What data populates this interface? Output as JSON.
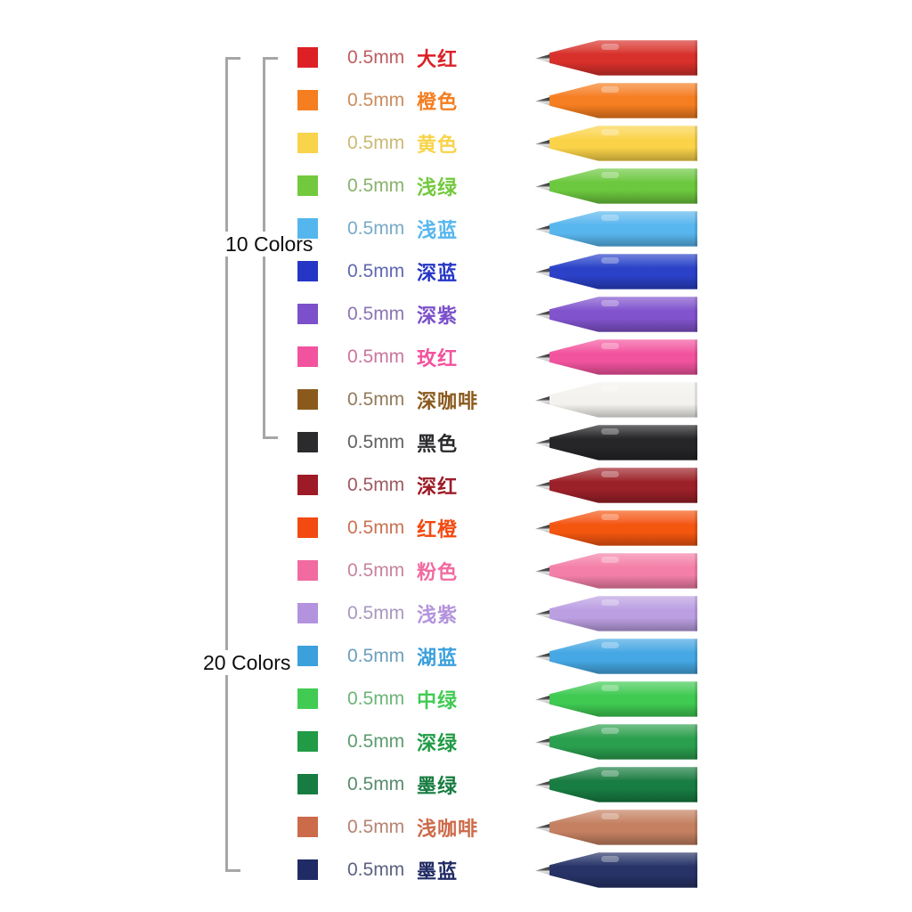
{
  "annotations": {
    "group10": {
      "label": "10 Colors"
    },
    "group20": {
      "label": "20 Colors"
    }
  },
  "ui": {
    "background": "#ffffff",
    "bracket_color": "#a6a6a6",
    "group_label_color": "#0d0d0d"
  },
  "product_rows": [
    {
      "tip_size": "0.5mm",
      "name": "大红",
      "swatch": "#dc2026",
      "pen": "#d8302b"
    },
    {
      "tip_size": "0.5mm",
      "name": "橙色",
      "swatch": "#f57e20",
      "pen": "#f57e20"
    },
    {
      "tip_size": "0.5mm",
      "name": "黄色",
      "swatch": "#f8d44b",
      "pen": "#fad348"
    },
    {
      "tip_size": "0.5mm",
      "name": "浅绿",
      "swatch": "#73c93d",
      "pen": "#6cc83e"
    },
    {
      "tip_size": "0.5mm",
      "name": "浅蓝",
      "swatch": "#55b6ee",
      "pen": "#58b6ee"
    },
    {
      "tip_size": "0.5mm",
      "name": "深蓝",
      "swatch": "#2536c6",
      "pen": "#2b41c8"
    },
    {
      "tip_size": "0.5mm",
      "name": "深紫",
      "swatch": "#7b50ca",
      "pen": "#8153cd"
    },
    {
      "tip_size": "0.5mm",
      "name": "玫红",
      "swatch": "#f2539e",
      "pen": "#f2539e"
    },
    {
      "tip_size": "0.5mm",
      "name": "深咖啡",
      "swatch": "#8a5a1d",
      "pen": "#f3f2ee"
    },
    {
      "tip_size": "0.5mm",
      "name": "黑色",
      "swatch": "#2b2b2e",
      "pen": "#262629"
    },
    {
      "tip_size": "0.5mm",
      "name": "深红",
      "swatch": "#9d1b26",
      "pen": "#9c2029"
    },
    {
      "tip_size": "0.5mm",
      "name": "红橙",
      "swatch": "#f24a10",
      "pen": "#f4560f"
    },
    {
      "tip_size": "0.5mm",
      "name": "粉色",
      "swatch": "#f16ba1",
      "pen": "#f47fa8"
    },
    {
      "tip_size": "0.5mm",
      "name": "浅紫",
      "swatch": "#b393dd",
      "pen": "#bb9fe2"
    },
    {
      "tip_size": "0.5mm",
      "name": "湖蓝",
      "swatch": "#3ba0dc",
      "pen": "#45a7e3"
    },
    {
      "tip_size": "0.5mm",
      "name": "中绿",
      "swatch": "#41cb53",
      "pen": "#3fca52"
    },
    {
      "tip_size": "0.5mm",
      "name": "深绿",
      "swatch": "#219b45",
      "pen": "#2aa04e"
    },
    {
      "tip_size": "0.5mm",
      "name": "墨绿",
      "swatch": "#177c41",
      "pen": "#187d42"
    },
    {
      "tip_size": "0.5mm",
      "name": "浅咖啡",
      "swatch": "#cc6b4a",
      "pen": "#c48061"
    },
    {
      "tip_size": "0.5mm",
      "name": "墨蓝",
      "swatch": "#202a64",
      "pen": "#273367"
    }
  ]
}
